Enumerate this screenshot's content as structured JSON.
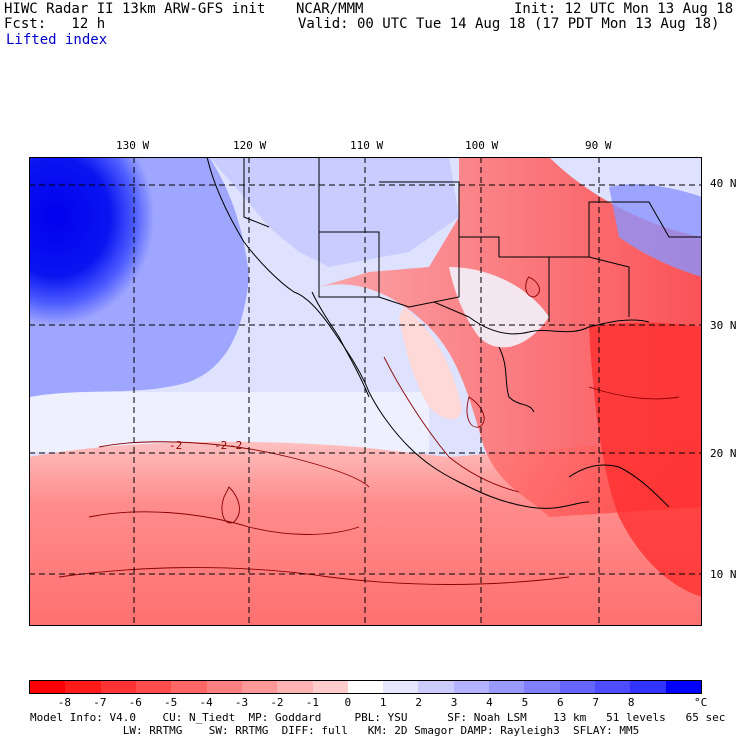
{
  "header": {
    "model_title": "HIWC Radar II 13km ARW-GFS init",
    "org": "NCAR/MMM",
    "init": "Init: 12 UTC Mon 13 Aug 18",
    "fcst": "Fcst:   12 h",
    "valid": "Valid: 00 UTC Tue 14 Aug 18 (17 PDT Mon 13 Aug 18)",
    "field": "Lifted index"
  },
  "map": {
    "lon_labels": [
      "130 W",
      "120 W",
      "110 W",
      "100 W",
      "90 W"
    ],
    "lat_labels": [
      "40 N",
      "30 N",
      "20 N",
      "10 N"
    ],
    "contour_labels": [
      "-2",
      "-2",
      "-2"
    ]
  },
  "colorbar": {
    "ticks": [
      "-8",
      "-7",
      "-6",
      "-5",
      "-4",
      "-3",
      "-2",
      "-1",
      "0",
      "1",
      "2",
      "3",
      "4",
      "5",
      "6",
      "7",
      "8"
    ],
    "unit": "°C",
    "colors": [
      "#ff0000",
      "#ff1a1a",
      "#ff3333",
      "#ff4d4d",
      "#ff6666",
      "#ff8080",
      "#ff9999",
      "#ffb3b3",
      "#ffcccc",
      "#ffffff",
      "#e6e6ff",
      "#ccccff",
      "#b3b3ff",
      "#9999ff",
      "#8080ff",
      "#6666ff",
      "#4d4dff",
      "#3333ff",
      "#0000ff"
    ]
  },
  "footer": {
    "line1": "Model Info: V4.0    CU: N_Tiedt  MP: Goddard     PBL: YSU      SF: Noah LSM    13 km   51 levels   65 sec",
    "line2": "              LW: RRTMG    SW: RRTMG  DIFF: full   KM: 2D Smagor DAMP: Rayleigh3  SFLAY: MM5"
  }
}
